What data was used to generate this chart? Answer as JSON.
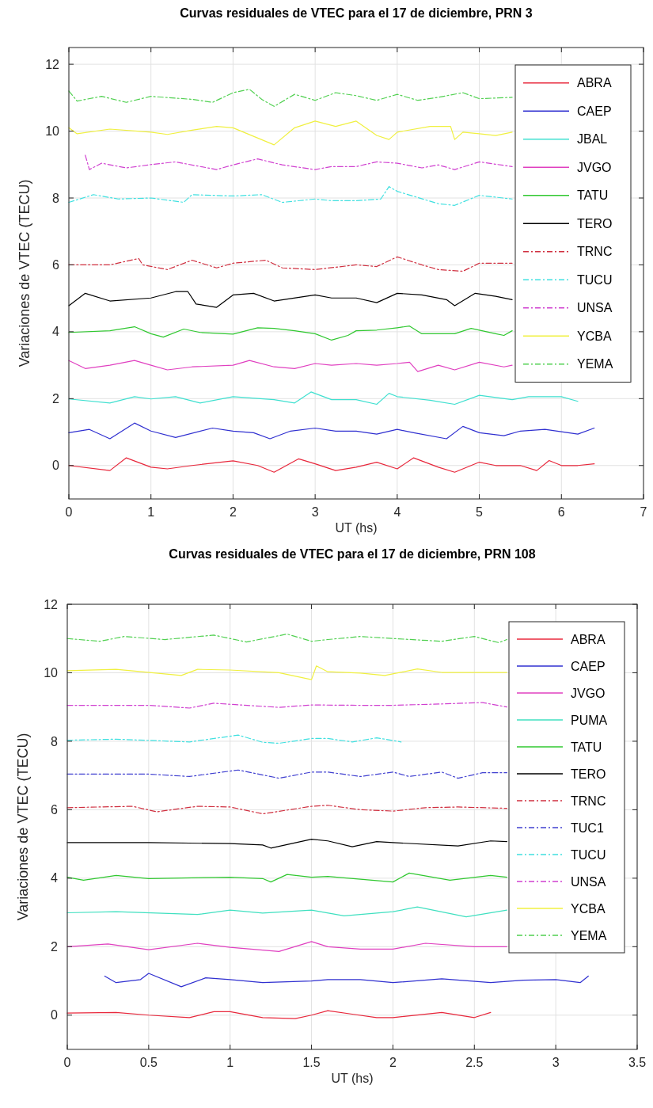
{
  "chart_data": [
    {
      "type": "line",
      "title": "Curvas residuales de VTEC para el 17 de diciembre, PRN 3",
      "xlabel": "UT (hs)",
      "ylabel": "Variaciones de VTEC (TECU)",
      "xlim": [
        0,
        7
      ],
      "xticks": [
        0,
        1,
        2,
        3,
        4,
        5,
        6,
        7
      ],
      "ylim": [
        -1,
        12.5
      ],
      "yticks": [
        0,
        2,
        4,
        6,
        8,
        10,
        12
      ],
      "grid": true,
      "legend": "top right",
      "marker": "none",
      "series": [
        {
          "name": "ABRA",
          "color": "#e8283c",
          "line_style": "solid",
          "x": [
            0,
            0.5,
            0.7,
            1.0,
            1.2,
            1.5,
            2.0,
            2.3,
            2.5,
            2.8,
            3.0,
            3.25,
            3.5,
            3.75,
            4.0,
            4.2,
            4.5,
            4.7,
            5.0,
            5.2,
            5.5,
            5.7,
            5.85,
            6.0,
            6.2,
            6.4
          ],
          "values": [
            0,
            -0.15,
            0.23,
            -0.05,
            -0.1,
            0,
            0.14,
            0,
            -0.2,
            0.2,
            0.05,
            -0.15,
            -0.05,
            0.1,
            -0.1,
            0.23,
            -0.05,
            -0.2,
            0.1,
            0,
            0,
            -0.15,
            0.15,
            0,
            0,
            0.05
          ]
        },
        {
          "name": "CAEP",
          "color": "#3030d0",
          "line_style": "solid",
          "x": [
            0,
            0.25,
            0.5,
            0.8,
            1.0,
            1.3,
            1.75,
            2.0,
            2.25,
            2.45,
            2.7,
            3.0,
            3.25,
            3.5,
            3.75,
            4.0,
            4.2,
            4.6,
            4.8,
            5.0,
            5.3,
            5.5,
            5.8,
            6.2,
            6.4
          ],
          "values": [
            0.98,
            1.08,
            0.8,
            1.27,
            1.03,
            0.84,
            1.12,
            1.03,
            0.98,
            0.8,
            1.03,
            1.12,
            1.03,
            1.03,
            0.94,
            1.08,
            0.98,
            0.8,
            1.17,
            0.98,
            0.89,
            1.03,
            1.08,
            0.94,
            1.12
          ]
        },
        {
          "name": "JBAL",
          "color": "#40e0d0",
          "line_style": "solid",
          "x": [
            0,
            0.5,
            0.8,
            1.0,
            1.3,
            1.6,
            2.0,
            2.5,
            2.75,
            2.95,
            3.2,
            3.5,
            3.75,
            3.9,
            4.0,
            4.4,
            4.7,
            5.0,
            5.4,
            5.6,
            6.0,
            6.2
          ],
          "values": [
            1.99,
            1.87,
            2.06,
            1.99,
            2.06,
            1.87,
            2.06,
            1.97,
            1.87,
            2.2,
            1.97,
            1.97,
            1.83,
            2.16,
            2.06,
            1.95,
            1.83,
            2.1,
            1.97,
            2.06,
            2.06,
            1.92
          ]
        },
        {
          "name": "JVGO",
          "color": "#e040c0",
          "line_style": "solid",
          "x": [
            0,
            0.2,
            0.5,
            0.8,
            1.0,
            1.2,
            1.5,
            2.0,
            2.2,
            2.5,
            2.75,
            3.0,
            3.2,
            3.5,
            3.75,
            4.0,
            4.15,
            4.25,
            4.5,
            4.7,
            5.0,
            5.3,
            5.4
          ],
          "values": [
            3.14,
            2.9,
            3.0,
            3.14,
            3.0,
            2.86,
            2.95,
            3.0,
            3.14,
            2.95,
            2.9,
            3.05,
            3.0,
            3.05,
            3.0,
            3.05,
            3.09,
            2.81,
            3.0,
            2.86,
            3.09,
            2.95,
            3.0
          ]
        },
        {
          "name": "TATU",
          "color": "#30c830",
          "line_style": "solid",
          "x": [
            0,
            0.5,
            0.8,
            1.0,
            1.15,
            1.4,
            1.6,
            2.0,
            2.3,
            2.5,
            2.75,
            3.0,
            3.2,
            3.4,
            3.5,
            3.75,
            4.0,
            4.15,
            4.3,
            4.7,
            4.9,
            5.2,
            5.3,
            5.4
          ],
          "values": [
            3.98,
            4.03,
            4.15,
            3.94,
            3.84,
            4.08,
            3.98,
            3.93,
            4.12,
            4.1,
            4.03,
            3.94,
            3.75,
            3.89,
            4.03,
            4.05,
            4.12,
            4.17,
            3.94,
            3.94,
            4.1,
            3.94,
            3.89,
            4.03
          ]
        },
        {
          "name": "TERO",
          "color": "#000000",
          "line_style": "solid",
          "x": [
            0,
            0.2,
            0.5,
            1.0,
            1.3,
            1.45,
            1.55,
            1.8,
            2.0,
            2.25,
            2.5,
            3.0,
            3.2,
            3.5,
            3.75,
            4.0,
            4.3,
            4.6,
            4.7,
            4.95,
            5.2,
            5.4
          ],
          "values": [
            4.78,
            5.15,
            4.92,
            5.01,
            5.2,
            5.2,
            4.83,
            4.73,
            5.1,
            5.15,
            4.92,
            5.1,
            5.01,
            5.01,
            4.87,
            5.15,
            5.1,
            4.96,
            4.78,
            5.15,
            5.06,
            4.96
          ]
        },
        {
          "name": "TRNC",
          "color": "#d03040",
          "line_style": "dashdot",
          "x": [
            0,
            0.5,
            0.85,
            0.9,
            1.2,
            1.5,
            1.8,
            2.0,
            2.4,
            2.6,
            3.0,
            3.5,
            3.75,
            4.0,
            4.3,
            4.5,
            4.8,
            5.0,
            5.4
          ],
          "values": [
            6.0,
            6.0,
            6.19,
            6.0,
            5.86,
            6.14,
            5.91,
            6.05,
            6.14,
            5.91,
            5.86,
            6.0,
            5.95,
            6.24,
            6.0,
            5.86,
            5.81,
            6.05,
            6.05
          ]
        },
        {
          "name": "TUCU",
          "color": "#40e0e0",
          "line_style": "dashdot",
          "x": [
            0,
            0.3,
            0.6,
            1.0,
            1.4,
            1.5,
            2.0,
            2.35,
            2.6,
            3.0,
            3.2,
            3.5,
            3.8,
            3.9,
            4.0,
            4.5,
            4.7,
            5.0,
            5.4
          ],
          "values": [
            7.87,
            8.1,
            7.97,
            8.0,
            7.87,
            8.1,
            8.06,
            8.1,
            7.87,
            7.97,
            7.92,
            7.92,
            7.97,
            8.34,
            8.2,
            7.83,
            7.78,
            8.08,
            7.97
          ]
        },
        {
          "name": "UNSA",
          "color": "#d040d0",
          "line_style": "dashdot",
          "x": [
            0.2,
            0.25,
            0.4,
            0.7,
            1.0,
            1.3,
            1.8,
            2.0,
            2.3,
            2.6,
            3.0,
            3.2,
            3.5,
            3.75,
            4.0,
            4.3,
            4.5,
            4.7,
            5.0,
            5.4
          ],
          "values": [
            9.28,
            8.85,
            9.04,
            8.9,
            9.0,
            9.08,
            8.85,
            8.99,
            9.17,
            8.99,
            8.85,
            8.94,
            8.94,
            9.08,
            9.04,
            8.9,
            8.99,
            8.85,
            9.08,
            8.94
          ]
        },
        {
          "name": "YCBA",
          "color": "#f0f040",
          "line_style": "solid",
          "x": [
            0,
            0.1,
            0.5,
            1.0,
            1.2,
            1.5,
            1.8,
            2.0,
            2.5,
            2.75,
            3.0,
            3.25,
            3.5,
            3.75,
            3.9,
            4.0,
            4.4,
            4.65,
            4.7,
            4.8,
            5.0,
            5.2,
            5.4
          ],
          "values": [
            10.1,
            9.92,
            10.06,
            9.97,
            9.9,
            10.03,
            10.14,
            10.1,
            9.59,
            10.1,
            10.3,
            10.14,
            10.3,
            9.87,
            9.75,
            9.97,
            10.14,
            10.14,
            9.75,
            9.97,
            9.92,
            9.87,
            9.97
          ]
        },
        {
          "name": "YEMA",
          "color": "#50d050",
          "line_style": "dashdot",
          "x": [
            0,
            0.1,
            0.4,
            0.7,
            1.0,
            1.5,
            1.75,
            2.0,
            2.2,
            2.35,
            2.5,
            2.75,
            3.0,
            3.25,
            3.5,
            3.75,
            4.0,
            4.25,
            4.5,
            4.8,
            5.0,
            5.4
          ],
          "values": [
            11.2,
            10.9,
            11.04,
            10.86,
            11.04,
            10.95,
            10.86,
            11.15,
            11.25,
            10.95,
            10.74,
            11.1,
            10.92,
            11.15,
            11.06,
            10.92,
            11.1,
            10.92,
            11.01,
            11.15,
            10.97,
            11.01
          ]
        }
      ]
    },
    {
      "type": "line",
      "title": "Curvas residuales de VTEC para el 17 de diciembre, PRN 108",
      "xlabel": "UT (hs)",
      "ylabel": "Variaciones de VTEC (TECU)",
      "xlim": [
        0,
        3.5
      ],
      "xticks": [
        0,
        0.5,
        1,
        1.5,
        2,
        2.5,
        3,
        3.5
      ],
      "ylim": [
        -1,
        12
      ],
      "yticks": [
        0,
        2,
        4,
        6,
        8,
        10,
        12
      ],
      "grid": true,
      "legend": "top right",
      "marker": "none",
      "series": [
        {
          "name": "ABRA",
          "color": "#e8283c",
          "line_style": "solid",
          "x": [
            0,
            0.3,
            0.5,
            0.75,
            0.9,
            1.0,
            1.2,
            1.4,
            1.5,
            1.6,
            1.75,
            1.9,
            2.0,
            2.3,
            2.5,
            2.6
          ],
          "values": [
            0.06,
            0.08,
            0,
            -0.07,
            0.1,
            0.1,
            -0.07,
            -0.1,
            0,
            0.13,
            0.03,
            -0.07,
            -0.07,
            0.08,
            -0.07,
            0.08
          ]
        },
        {
          "name": "CAEP",
          "color": "#3030d0",
          "line_style": "solid",
          "x": [
            0.23,
            0.3,
            0.45,
            0.5,
            0.7,
            0.85,
            1.0,
            1.2,
            1.5,
            1.6,
            1.8,
            2.0,
            2.3,
            2.6,
            2.8,
            3.0,
            3.15,
            3.2
          ],
          "values": [
            1.14,
            0.95,
            1.04,
            1.22,
            0.83,
            1.09,
            1.04,
            0.95,
            1.0,
            1.04,
            1.04,
            0.95,
            1.06,
            0.95,
            1.02,
            1.04,
            0.95,
            1.14
          ]
        },
        {
          "name": "JVGO",
          "color": "#e040c0",
          "line_style": "solid",
          "x": [
            0,
            0.25,
            0.5,
            0.8,
            1.0,
            1.3,
            1.5,
            1.6,
            1.8,
            2.0,
            2.2,
            2.5,
            2.7
          ],
          "values": [
            2.0,
            2.08,
            1.91,
            2.1,
            1.98,
            1.86,
            2.15,
            2.0,
            1.93,
            1.93,
            2.1,
            2.0,
            2.0
          ]
        },
        {
          "name": "PUMA",
          "color": "#40e0c0",
          "line_style": "solid",
          "x": [
            0,
            0.3,
            0.8,
            1.0,
            1.2,
            1.5,
            1.7,
            2.0,
            2.15,
            2.45,
            2.7
          ],
          "values": [
            2.99,
            3.02,
            2.94,
            3.07,
            2.98,
            3.07,
            2.9,
            3.02,
            3.16,
            2.87,
            3.07
          ]
        },
        {
          "name": "TATU",
          "color": "#30c830",
          "line_style": "solid",
          "x": [
            0,
            0.1,
            0.3,
            0.5,
            1.0,
            1.2,
            1.25,
            1.35,
            1.5,
            1.6,
            2.0,
            2.1,
            2.35,
            2.6,
            2.7
          ],
          "values": [
            4.03,
            3.94,
            4.08,
            3.99,
            4.03,
            3.99,
            3.89,
            4.11,
            4.03,
            4.05,
            3.89,
            4.15,
            3.94,
            4.08,
            4.03
          ]
        },
        {
          "name": "TERO",
          "color": "#000000",
          "line_style": "solid",
          "x": [
            0,
            0.5,
            1.0,
            1.2,
            1.25,
            1.5,
            1.6,
            1.75,
            1.9,
            2.0,
            2.4,
            2.6,
            2.7
          ],
          "values": [
            5.04,
            5.04,
            5.01,
            4.97,
            4.88,
            5.14,
            5.09,
            4.92,
            5.07,
            5.04,
            4.94,
            5.09,
            5.07
          ]
        },
        {
          "name": "TRNC",
          "color": "#d03040",
          "line_style": "dashdot",
          "x": [
            0,
            0.4,
            0.55,
            0.8,
            1.0,
            1.2,
            1.5,
            1.6,
            1.8,
            2.0,
            2.2,
            2.4,
            2.7
          ],
          "values": [
            6.06,
            6.1,
            5.94,
            6.1,
            6.08,
            5.88,
            6.1,
            6.13,
            6.0,
            5.96,
            6.06,
            6.08,
            6.04
          ]
        },
        {
          "name": "TUC1",
          "color": "#4040d0",
          "line_style": "dashdot",
          "x": [
            0,
            0.5,
            0.75,
            1.05,
            1.3,
            1.5,
            1.6,
            1.8,
            2.0,
            2.1,
            2.3,
            2.4,
            2.55,
            2.7
          ],
          "values": [
            7.04,
            7.04,
            6.97,
            7.16,
            6.92,
            7.1,
            7.1,
            6.97,
            7.1,
            6.97,
            7.1,
            6.92,
            7.08,
            7.08
          ]
        },
        {
          "name": "TUCU",
          "color": "#40e0e0",
          "line_style": "dashdot",
          "x": [
            0,
            0.3,
            0.75,
            1.05,
            1.2,
            1.3,
            1.5,
            1.6,
            1.75,
            1.9,
            2.05
          ],
          "values": [
            8.03,
            8.06,
            7.98,
            8.18,
            7.97,
            7.94,
            8.08,
            8.08,
            7.98,
            8.1,
            7.98
          ]
        },
        {
          "name": "UNSA",
          "color": "#d040d0",
          "line_style": "dashdot",
          "x": [
            0,
            0.5,
            0.75,
            0.9,
            1.3,
            1.5,
            1.8,
            2.0,
            2.3,
            2.55,
            2.7
          ],
          "values": [
            9.05,
            9.05,
            8.97,
            9.11,
            8.99,
            9.06,
            9.05,
            9.05,
            9.09,
            9.13,
            9.0
          ]
        },
        {
          "name": "YCBA",
          "color": "#f0f040",
          "line_style": "solid",
          "x": [
            0,
            0.3,
            0.7,
            0.8,
            1.0,
            1.3,
            1.5,
            1.53,
            1.6,
            1.8,
            1.95,
            2.15,
            2.3,
            2.7
          ],
          "values": [
            10.06,
            10.1,
            9.92,
            10.1,
            10.08,
            10.0,
            9.8,
            10.2,
            10.03,
            9.99,
            9.92,
            10.11,
            10.01,
            10.01
          ]
        },
        {
          "name": "YEMA",
          "color": "#50d050",
          "line_style": "dashdot",
          "x": [
            0,
            0.2,
            0.35,
            0.6,
            0.9,
            1.1,
            1.35,
            1.5,
            1.6,
            1.8,
            2.0,
            2.3,
            2.5,
            2.65,
            2.7
          ],
          "values": [
            11.0,
            10.92,
            11.06,
            10.97,
            11.1,
            10.9,
            11.13,
            10.92,
            10.97,
            11.06,
            11.0,
            10.92,
            11.06,
            10.88,
            10.97
          ]
        }
      ]
    }
  ]
}
